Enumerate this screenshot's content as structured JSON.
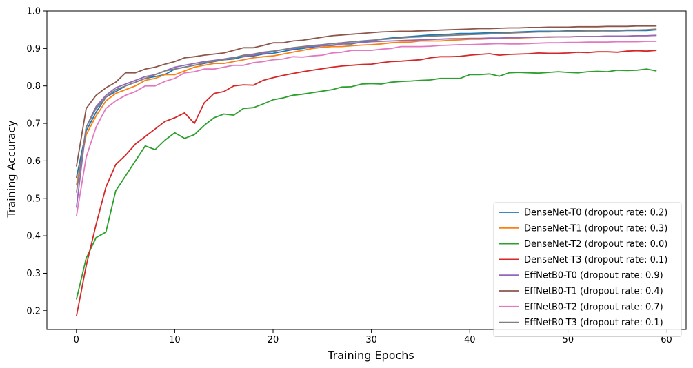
{
  "chart_data": {
    "type": "line",
    "title": "",
    "xlabel": "Training Epochs",
    "ylabel": "Training Accuracy",
    "xlim": [
      -3,
      62
    ],
    "ylim": [
      0.15,
      1.0
    ],
    "xticks": [
      0,
      10,
      20,
      30,
      40,
      50,
      60
    ],
    "yticks": [
      0.2,
      0.3,
      0.4,
      0.5,
      0.6,
      0.7,
      0.8,
      0.9,
      1.0
    ],
    "xtick_labels": [
      "0",
      "10",
      "20",
      "30",
      "40",
      "50",
      "60"
    ],
    "ytick_labels": [
      "0.2",
      "0.3",
      "0.4",
      "0.5",
      "0.6",
      "0.7",
      "0.8",
      "0.9",
      "1.0"
    ],
    "grid": false,
    "legend_position": "lower-right",
    "x": [
      0,
      1,
      2,
      3,
      4,
      5,
      6,
      7,
      8,
      9,
      10,
      11,
      12,
      13,
      14,
      15,
      16,
      17,
      18,
      19,
      20,
      21,
      22,
      23,
      24,
      25,
      26,
      27,
      28,
      29,
      30,
      31,
      32,
      33,
      34,
      35,
      36,
      37,
      38,
      39,
      40,
      41,
      42,
      43,
      44,
      45,
      46,
      47,
      48,
      49,
      50,
      51,
      52,
      53,
      54,
      55,
      56,
      57,
      58,
      59
    ],
    "series": [
      {
        "name": "DenseNet-T0 (dropout rate: 0.2)",
        "color": "#1f77b4",
        "values": [
          0.555,
          0.68,
          0.73,
          0.77,
          0.785,
          0.8,
          0.81,
          0.82,
          0.825,
          0.83,
          0.845,
          0.85,
          0.855,
          0.86,
          0.865,
          0.87,
          0.872,
          0.878,
          0.88,
          0.885,
          0.887,
          0.892,
          0.897,
          0.9,
          0.904,
          0.907,
          0.908,
          0.912,
          0.912,
          0.917,
          0.92,
          0.925,
          0.928,
          0.93,
          0.932,
          0.934,
          0.936,
          0.937,
          0.938,
          0.94,
          0.94,
          0.941,
          0.942,
          0.942,
          0.943,
          0.944,
          0.945,
          0.946,
          0.946,
          0.946,
          0.947,
          0.947,
          0.947,
          0.947,
          0.947,
          0.947,
          0.948,
          0.948,
          0.948,
          0.95
        ]
      },
      {
        "name": "DenseNet-T1 (dropout rate: 0.3)",
        "color": "#ff7f0e",
        "values": [
          0.535,
          0.67,
          0.72,
          0.76,
          0.78,
          0.79,
          0.8,
          0.815,
          0.82,
          0.83,
          0.83,
          0.84,
          0.85,
          0.855,
          0.86,
          0.86,
          0.865,
          0.87,
          0.875,
          0.878,
          0.88,
          0.885,
          0.89,
          0.895,
          0.9,
          0.903,
          0.905,
          0.905,
          0.907,
          0.909,
          0.91,
          0.912,
          0.915,
          0.917,
          0.917,
          0.92,
          0.92,
          0.92,
          0.922,
          0.923,
          0.925,
          0.925,
          0.926,
          0.927,
          0.928,
          0.928,
          0.929,
          0.93,
          0.93,
          0.931,
          0.931,
          0.932,
          0.932,
          0.932,
          0.933,
          0.933,
          0.933,
          0.934,
          0.934,
          0.935
        ]
      },
      {
        "name": "DenseNet-T2 (dropout rate: 0.0)",
        "color": "#2ca02c",
        "values": [
          0.23,
          0.34,
          0.395,
          0.41,
          0.52,
          0.56,
          0.6,
          0.64,
          0.63,
          0.655,
          0.675,
          0.66,
          0.67,
          0.695,
          0.715,
          0.725,
          0.722,
          0.74,
          0.742,
          0.752,
          0.763,
          0.768,
          0.775,
          0.778,
          0.782,
          0.786,
          0.79,
          0.797,
          0.798,
          0.805,
          0.806,
          0.805,
          0.81,
          0.812,
          0.813,
          0.815,
          0.816,
          0.82,
          0.82,
          0.82,
          0.83,
          0.83,
          0.832,
          0.826,
          0.835,
          0.836,
          0.835,
          0.834,
          0.836,
          0.838,
          0.836,
          0.835,
          0.838,
          0.839,
          0.838,
          0.842,
          0.841,
          0.842,
          0.845,
          0.84
        ]
      },
      {
        "name": "DenseNet-T3 (dropout rate: 0.1)",
        "color": "#d62728",
        "values": [
          0.185,
          0.32,
          0.43,
          0.53,
          0.59,
          0.615,
          0.645,
          0.665,
          0.685,
          0.705,
          0.715,
          0.728,
          0.7,
          0.755,
          0.78,
          0.785,
          0.8,
          0.803,
          0.802,
          0.815,
          0.822,
          0.828,
          0.833,
          0.838,
          0.842,
          0.846,
          0.85,
          0.853,
          0.855,
          0.857,
          0.858,
          0.862,
          0.865,
          0.866,
          0.868,
          0.87,
          0.875,
          0.878,
          0.878,
          0.879,
          0.882,
          0.884,
          0.886,
          0.882,
          0.884,
          0.885,
          0.886,
          0.888,
          0.887,
          0.887,
          0.888,
          0.89,
          0.889,
          0.891,
          0.891,
          0.89,
          0.893,
          0.894,
          0.893,
          0.895
        ]
      },
      {
        "name": "EffNetB0-T0 (dropout rate: 0.9)",
        "color": "#9467bd",
        "values": [
          0.475,
          0.69,
          0.745,
          0.775,
          0.795,
          0.805,
          0.815,
          0.825,
          0.83,
          0.84,
          0.85,
          0.855,
          0.86,
          0.865,
          0.868,
          0.872,
          0.876,
          0.88,
          0.882,
          0.887,
          0.892,
          0.897,
          0.9,
          0.903,
          0.906,
          0.907,
          0.909,
          0.912,
          0.914,
          0.916,
          0.918,
          0.919,
          0.92,
          0.921,
          0.922,
          0.923,
          0.924,
          0.925,
          0.926,
          0.926,
          0.927,
          0.927,
          0.928,
          0.928,
          0.929,
          0.929,
          0.93,
          0.93,
          0.931,
          0.931,
          0.931,
          0.932,
          0.932,
          0.932,
          0.933,
          0.933,
          0.933,
          0.934,
          0.934,
          0.935
        ]
      },
      {
        "name": "EffNetB0-T1 (dropout rate: 0.4)",
        "color": "#8c564b",
        "values": [
          0.585,
          0.74,
          0.775,
          0.795,
          0.81,
          0.835,
          0.835,
          0.845,
          0.85,
          0.858,
          0.865,
          0.875,
          0.878,
          0.882,
          0.885,
          0.888,
          0.895,
          0.902,
          0.902,
          0.908,
          0.915,
          0.915,
          0.92,
          0.922,
          0.926,
          0.93,
          0.934,
          0.936,
          0.938,
          0.94,
          0.942,
          0.944,
          0.945,
          0.946,
          0.946,
          0.947,
          0.948,
          0.949,
          0.95,
          0.951,
          0.952,
          0.953,
          0.953,
          0.954,
          0.955,
          0.955,
          0.956,
          0.956,
          0.957,
          0.957,
          0.957,
          0.958,
          0.958,
          0.958,
          0.959,
          0.959,
          0.959,
          0.96,
          0.96,
          0.96
        ]
      },
      {
        "name": "EffNetB0-T2 (dropout rate: 0.7)",
        "color": "#e377c2",
        "values": [
          0.452,
          0.61,
          0.69,
          0.74,
          0.76,
          0.775,
          0.785,
          0.8,
          0.8,
          0.812,
          0.82,
          0.835,
          0.838,
          0.845,
          0.845,
          0.85,
          0.855,
          0.855,
          0.862,
          0.865,
          0.87,
          0.872,
          0.878,
          0.877,
          0.88,
          0.882,
          0.888,
          0.89,
          0.895,
          0.895,
          0.895,
          0.898,
          0.9,
          0.905,
          0.905,
          0.905,
          0.906,
          0.908,
          0.909,
          0.91,
          0.91,
          0.911,
          0.912,
          0.913,
          0.912,
          0.912,
          0.913,
          0.914,
          0.915,
          0.915,
          0.916,
          0.916,
          0.917,
          0.917,
          0.917,
          0.918,
          0.918,
          0.918,
          0.919,
          0.919
        ]
      },
      {
        "name": "EffNetB0-T3 (dropout rate: 0.1)",
        "color": "#7f7f7f",
        "values": [
          0.515,
          0.69,
          0.74,
          0.77,
          0.79,
          0.8,
          0.81,
          0.82,
          0.83,
          0.84,
          0.845,
          0.85,
          0.855,
          0.862,
          0.866,
          0.87,
          0.875,
          0.882,
          0.885,
          0.89,
          0.893,
          0.897,
          0.902,
          0.905,
          0.908,
          0.91,
          0.913,
          0.915,
          0.918,
          0.92,
          0.922,
          0.924,
          0.926,
          0.928,
          0.93,
          0.931,
          0.933,
          0.934,
          0.935,
          0.936,
          0.937,
          0.938,
          0.939,
          0.94,
          0.941,
          0.942,
          0.943,
          0.944,
          0.944,
          0.945,
          0.946,
          0.946,
          0.947,
          0.947,
          0.948,
          0.948,
          0.949,
          0.949,
          0.95,
          0.952
        ]
      }
    ]
  }
}
